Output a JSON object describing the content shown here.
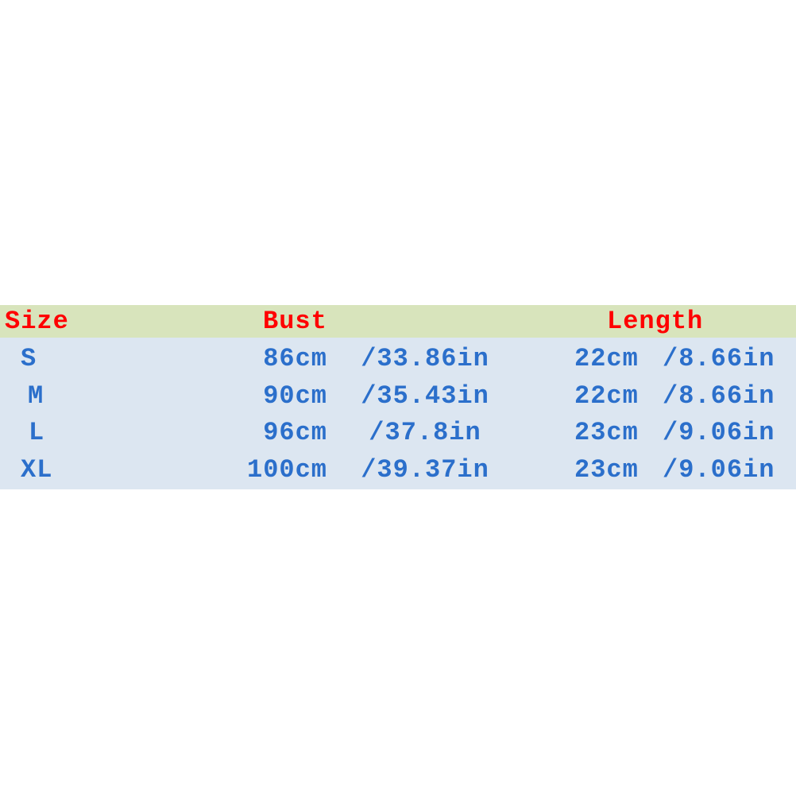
{
  "colors": {
    "header_bg": "#d8e4bc",
    "body_bg": "#dce6f1",
    "header_text": "#ff0000",
    "body_text": "#2b6fcb"
  },
  "headers": {
    "size": "Size",
    "bust": "Bust",
    "length": "Length"
  },
  "rows": [
    {
      "size": "S",
      "bust_cm": "86cm",
      "bust_in": "/33.86in",
      "length_cm": "22cm",
      "length_in": "/8.66in"
    },
    {
      "size": "M",
      "bust_cm": "90cm",
      "bust_in": "/35.43in",
      "length_cm": "22cm",
      "length_in": "/8.66in"
    },
    {
      "size": "L",
      "bust_cm": "96cm",
      "bust_in": "/37.8in",
      "length_cm": "23cm",
      "length_in": "/9.06in"
    },
    {
      "size": "XL",
      "bust_cm": "100cm",
      "bust_in": "/39.37in",
      "length_cm": "23cm",
      "length_in": "/9.06in"
    }
  ]
}
